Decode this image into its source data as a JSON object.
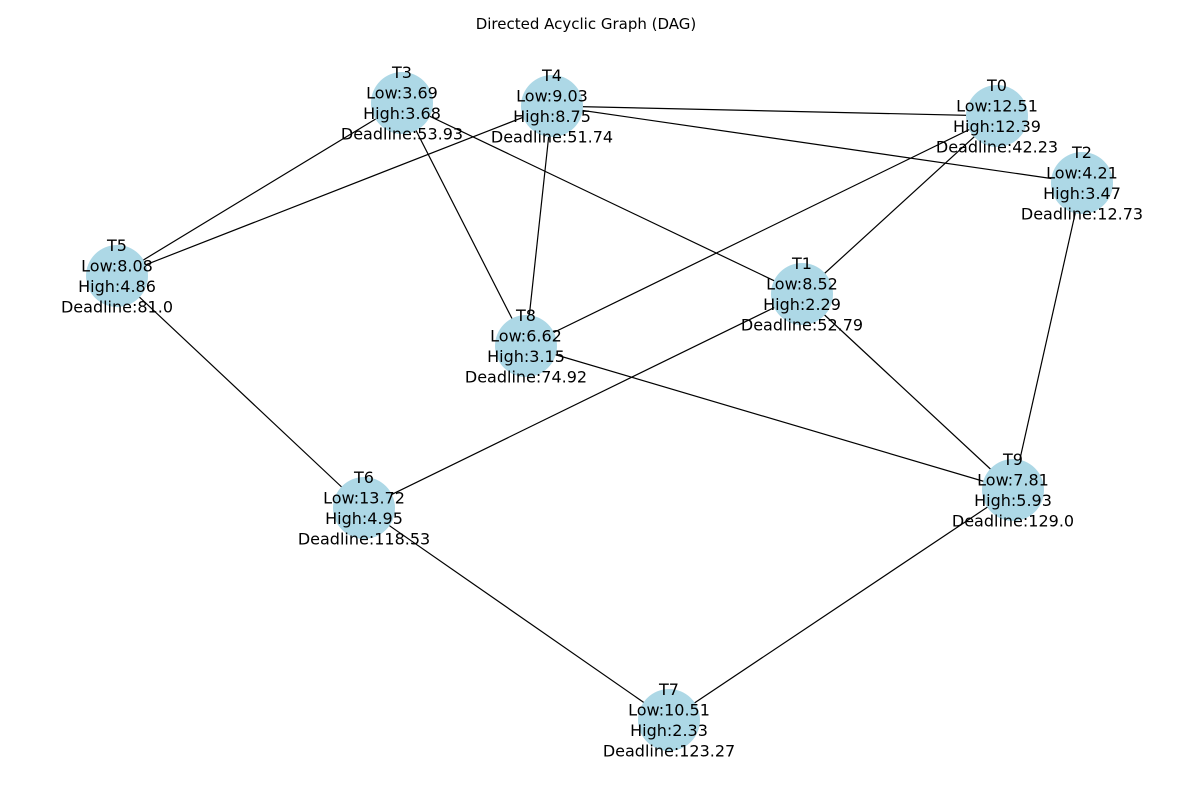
{
  "title": "Directed Acyclic Graph (DAG)",
  "colors": {
    "node_fill": "#add8e6",
    "edge": "#000000",
    "background": "#ffffff"
  },
  "nodes": [
    {
      "id": "T0",
      "low": "Low:12.51",
      "high": "High:12.39",
      "deadline": "Deadline:42.23"
    },
    {
      "id": "T1",
      "low": "Low:8.52",
      "high": "High:2.29",
      "deadline": "Deadline:52.79"
    },
    {
      "id": "T2",
      "low": "Low:4.21",
      "high": "High:3.47",
      "deadline": "Deadline:12.73"
    },
    {
      "id": "T3",
      "low": "Low:3.69",
      "high": "High:3.68",
      "deadline": "Deadline:53.93"
    },
    {
      "id": "T4",
      "low": "Low:9.03",
      "high": "High:8.75",
      "deadline": "Deadline:51.74"
    },
    {
      "id": "T5",
      "low": "Low:8.08",
      "high": "High:4.86",
      "deadline": "Deadline:81.0"
    },
    {
      "id": "T6",
      "low": "Low:13.72",
      "high": "High:4.95",
      "deadline": "Deadline:118.53"
    },
    {
      "id": "T7",
      "low": "Low:10.51",
      "high": "High:2.33",
      "deadline": "Deadline:123.27"
    },
    {
      "id": "T8",
      "low": "Low:6.62",
      "high": "High:3.15",
      "deadline": "Deadline:74.92"
    },
    {
      "id": "T9",
      "low": "Low:7.81",
      "high": "High:5.93",
      "deadline": "Deadline:129.0"
    }
  ],
  "edges": [
    [
      "T4",
      "T0"
    ],
    [
      "T4",
      "T2"
    ],
    [
      "T4",
      "T5"
    ],
    [
      "T4",
      "T8"
    ],
    [
      "T3",
      "T5"
    ],
    [
      "T3",
      "T8"
    ],
    [
      "T3",
      "T1"
    ],
    [
      "T0",
      "T8"
    ],
    [
      "T0",
      "T1"
    ],
    [
      "T2",
      "T9"
    ],
    [
      "T5",
      "T6"
    ],
    [
      "T1",
      "T6"
    ],
    [
      "T1",
      "T9"
    ],
    [
      "T8",
      "T9"
    ],
    [
      "T6",
      "T7"
    ],
    [
      "T9",
      "T7"
    ]
  ]
}
